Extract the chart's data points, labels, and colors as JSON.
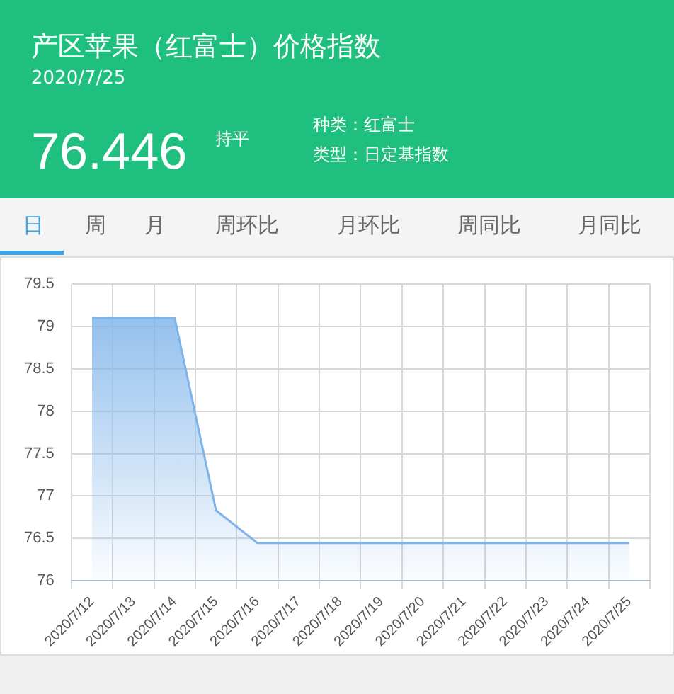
{
  "chart_data": {
    "type": "area",
    "title": "产区苹果（红富士）价格指数",
    "subtitle": "2020/7/25",
    "annotations": [
      "76.446",
      "持平",
      "种类：红富士",
      "类型：日定基指数",
      "日",
      "周",
      "月",
      "周环比",
      "月环比",
      "周同比",
      "月同比"
    ],
    "categories": [
      "2020/7/12",
      "2020/7/13",
      "2020/7/14",
      "2020/7/15",
      "2020/7/16",
      "2020/7/17",
      "2020/7/18",
      "2020/7/19",
      "2020/7/20",
      "2020/7/21",
      "2020/7/22",
      "2020/7/23",
      "2020/7/24",
      "2020/7/25"
    ],
    "series": [
      {
        "color": "#7eb4ea",
        "values": [
          79.1,
          79.1,
          79.1,
          76.83,
          76.446,
          76.446,
          76.446,
          76.446,
          76.446,
          76.446,
          76.446,
          76.446,
          76.446,
          76.446
        ]
      }
    ],
    "ylim": [
      76,
      79.5
    ],
    "yticks": [
      76,
      76.5,
      77,
      77.5,
      78,
      78.5,
      79,
      79.5
    ],
    "grid": true,
    "legend": false,
    "marker": "none",
    "line_style": "solid"
  }
}
